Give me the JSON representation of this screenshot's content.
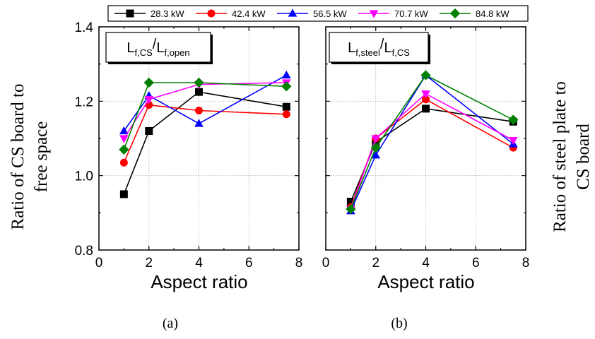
{
  "legend": [
    {
      "label": "28.3 kW",
      "color": "#000000",
      "marker": "square"
    },
    {
      "label": "42.4 kW",
      "color": "#ff0000",
      "marker": "circle"
    },
    {
      "label": "56.5 kW",
      "color": "#0000ff",
      "marker": "triangle-up"
    },
    {
      "label": "70.7 kW",
      "color": "#ff00ff",
      "marker": "triangle-down"
    },
    {
      "label": "84.8 kW",
      "color": "#008000",
      "marker": "diamond"
    }
  ],
  "chart_data": [
    {
      "type": "line",
      "panel_caption": "(a)",
      "annotation": {
        "main": "L",
        "sub1": "f,CS",
        "sep": "/",
        "main2": "L",
        "sub2": "f,open"
      },
      "xlabel": "Aspect ratio",
      "ylabel_lines": [
        "Ratio of CS board to",
        "free space"
      ],
      "xlim": [
        0,
        8
      ],
      "ylim": [
        0.8,
        1.4
      ],
      "xticks": [
        "0",
        "2",
        "4",
        "6",
        "8"
      ],
      "yticks": [
        "0.8",
        "1.0",
        "1.2",
        "1.4"
      ],
      "grid": true,
      "x": [
        1,
        2,
        4,
        7.5
      ],
      "series": [
        {
          "name": "28.3 kW",
          "values": [
            0.95,
            1.12,
            1.225,
            1.185
          ]
        },
        {
          "name": "42.4 kW",
          "values": [
            1.035,
            1.19,
            1.175,
            1.165
          ]
        },
        {
          "name": "56.5 kW",
          "values": [
            1.12,
            1.215,
            1.14,
            1.27
          ]
        },
        {
          "name": "70.7 kW",
          "values": [
            1.1,
            1.205,
            1.245,
            1.25
          ]
        },
        {
          "name": "84.8 kW",
          "values": [
            1.07,
            1.25,
            1.25,
            1.24
          ]
        }
      ]
    },
    {
      "type": "line",
      "panel_caption": "(b)",
      "annotation": {
        "main": "L",
        "sub1": "f,steel",
        "sep": "/",
        "main2": "L",
        "sub2": "f,CS"
      },
      "xlabel": "Aspect ratio",
      "ylabel_lines": [
        "Ratio of steel plate to",
        "CS board"
      ],
      "xlim": [
        0,
        8
      ],
      "ylim": [
        0.8,
        1.4
      ],
      "xticks": [
        "0",
        "2",
        "4",
        "6",
        "8"
      ],
      "grid": true,
      "x": [
        1,
        2,
        4,
        7.5
      ],
      "series": [
        {
          "name": "28.3 kW",
          "values": [
            0.93,
            1.09,
            1.18,
            1.145
          ]
        },
        {
          "name": "42.4 kW",
          "values": [
            0.915,
            1.1,
            1.205,
            1.075
          ]
        },
        {
          "name": "56.5 kW",
          "values": [
            0.905,
            1.055,
            1.27,
            1.085
          ]
        },
        {
          "name": "70.7 kW",
          "values": [
            0.91,
            1.1,
            1.22,
            1.095
          ]
        },
        {
          "name": "84.8 kW",
          "values": [
            0.91,
            1.075,
            1.27,
            1.15
          ]
        }
      ]
    }
  ]
}
